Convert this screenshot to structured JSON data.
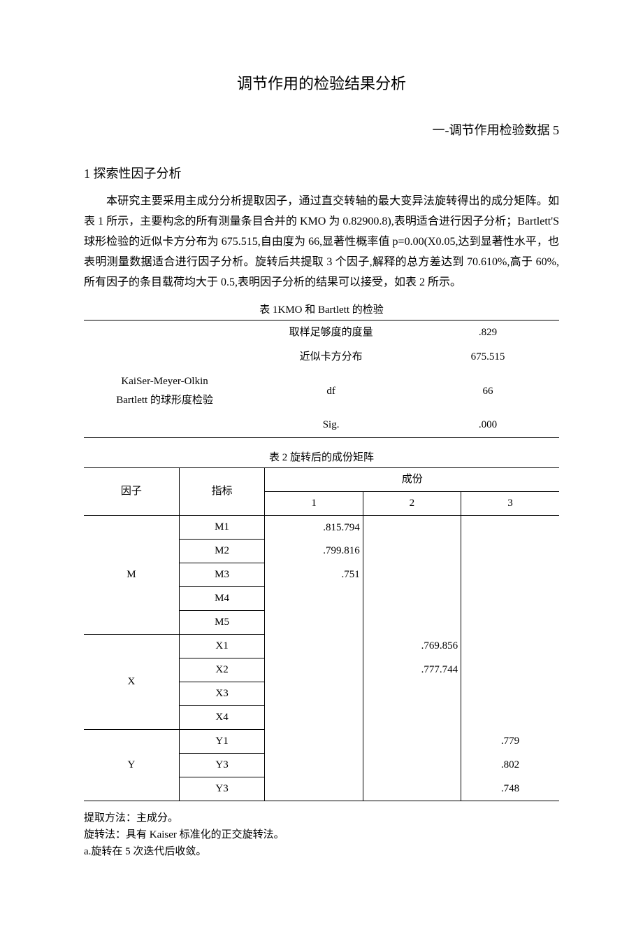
{
  "title": "调节作用的检验结果分析",
  "subtitle": "一-调节作用检验数据 5",
  "section1": {
    "heading": "1 探索性因子分析",
    "paragraph": "本研究主要采用主成分分析提取因子，通过直交转轴的最大变异法旋转得出的成分矩阵。如表 1 所示，主要构念的所有测量条目合并的 KMO 为 0.82900.8),表明适合进行因子分析；Bartlett'S 球形检验的近似卡方分布为 675.515,自由度为 66,显著性概率值 p=0.00(X0.05,达到显著性水平，也表明测量数据适合进行因子分析。旋转后共提取 3 个因子,解释的总方差达到 70.610%,高于 60%,所有因子的条目载荷均大于 0.5,表明因子分析的结果可以接受，如表 2 所示。"
  },
  "table1": {
    "caption": "表 1KMO 和 Bartlett 的检验",
    "left_labels": [
      "KaiSer-Meyer-Olkin",
      "Bartlett 的球形度检验"
    ],
    "rows": [
      {
        "measure": "取样足够度的度量",
        "value": ".829"
      },
      {
        "measure": "近似卡方分布",
        "value": "675.515"
      },
      {
        "measure": "df",
        "value": "66"
      },
      {
        "measure": "Sig.",
        "value": ".000"
      }
    ]
  },
  "table2": {
    "caption": "表 2 旋转后的成份矩阵",
    "headers": {
      "factor": "因子",
      "indicator": "指标",
      "component": "成份",
      "c1": "1",
      "c2": "2",
      "c3": "3"
    },
    "groups": [
      {
        "factor": "M",
        "rows": [
          {
            "ind": "M1",
            "c1": ".815.794",
            "c2": "",
            "c3": ""
          },
          {
            "ind": "M2",
            "c1": ".799.816",
            "c2": "",
            "c3": ""
          },
          {
            "ind": "M3",
            "c1": ".751",
            "c2": "",
            "c3": ""
          },
          {
            "ind": "M4",
            "c1": "",
            "c2": "",
            "c3": ""
          },
          {
            "ind": "M5",
            "c1": "",
            "c2": "",
            "c3": ""
          }
        ]
      },
      {
        "factor": "X",
        "rows": [
          {
            "ind": "X1",
            "c1": "",
            "c2": ".769.856",
            "c3": ""
          },
          {
            "ind": "X2",
            "c1": "",
            "c2": ".777.744",
            "c3": ""
          },
          {
            "ind": "X3",
            "c1": "",
            "c2": "",
            "c3": ""
          },
          {
            "ind": "X4",
            "c1": "",
            "c2": "",
            "c3": ""
          }
        ]
      },
      {
        "factor": "Y",
        "rows": [
          {
            "ind": "Y1",
            "c1": "",
            "c2": "",
            "c3": ".779"
          },
          {
            "ind": "Y3",
            "c1": "",
            "c2": "",
            "c3": ".802"
          },
          {
            "ind": "Y3",
            "c1": "",
            "c2": "",
            "c3": ".748"
          }
        ]
      }
    ]
  },
  "notes": {
    "line1": "提取方法：主成分。",
    "line2": "旋转法：具有 Kaiser 标准化的正交旋转法。",
    "line3": "a.旋转在 5 次迭代后收敛。"
  }
}
